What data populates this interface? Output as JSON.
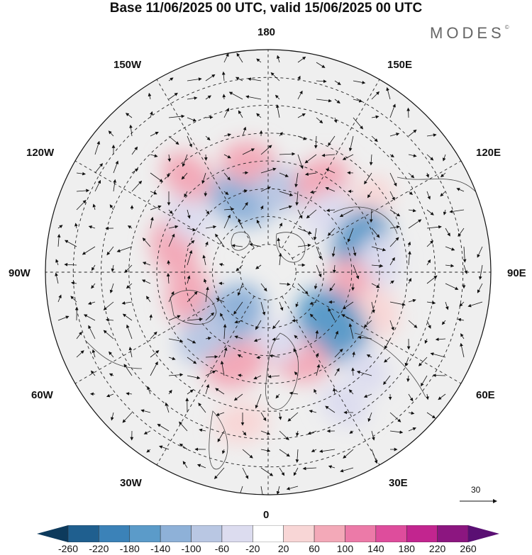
{
  "title": "Base 11/06/2025 00 UTC, valid 15/06/2025 00 UTC",
  "brand": "MODES",
  "brand_mark": "©",
  "longitude_labels": {
    "top": "180",
    "bottom": "0",
    "left": "90W",
    "right": "90E",
    "upper_left_1": "150W",
    "upper_left_2": "120W",
    "lower_left_1": "60W",
    "lower_left_2": "30W",
    "upper_right_1": "150E",
    "upper_right_2": "120E",
    "lower_right_1": "60E",
    "lower_right_2": "30E"
  },
  "vector_reference": {
    "value": "30"
  },
  "colorbar": {
    "labels": [
      "-260",
      "-220",
      "-180",
      "-140",
      "-100",
      "-60",
      "-20",
      "20",
      "60",
      "100",
      "140",
      "180",
      "220",
      "260"
    ],
    "colors": [
      "#0d3a5c",
      "#1f5f8f",
      "#3b82b8",
      "#5b9bc9",
      "#8eb1d8",
      "#b9c7e3",
      "#dcdcef",
      "#ffffff",
      "#f8d6d6",
      "#f3a9b8",
      "#ec7aa8",
      "#de4d9c",
      "#c2258f",
      "#8c1680",
      "#5a0f73"
    ]
  },
  "anomaly_cells": [
    {
      "lon": -160,
      "lat": 62,
      "value": -110
    },
    {
      "lon": -170,
      "lat": 50,
      "value": 60
    },
    {
      "lon": 170,
      "lat": 60,
      "value": -70
    },
    {
      "lon": 150,
      "lat": 52,
      "value": 70
    },
    {
      "lon": 135,
      "lat": 60,
      "value": -40
    },
    {
      "lon": 125,
      "lat": 45,
      "value": 40
    },
    {
      "lon": 105,
      "lat": 55,
      "value": -150
    },
    {
      "lon": 95,
      "lat": 50,
      "value": -60
    },
    {
      "lon": 80,
      "lat": 60,
      "value": 70
    },
    {
      "lon": 70,
      "lat": 48,
      "value": 50
    },
    {
      "lon": 50,
      "lat": 60,
      "value": -170
    },
    {
      "lon": 45,
      "lat": 40,
      "value": -30
    },
    {
      "lon": 20,
      "lat": 57,
      "value": 80
    },
    {
      "lon": 5,
      "lat": 65,
      "value": -60
    },
    {
      "lon": -20,
      "lat": 55,
      "value": 90
    },
    {
      "lon": -40,
      "lat": 70,
      "value": -120
    },
    {
      "lon": -45,
      "lat": 57,
      "value": -70
    },
    {
      "lon": -75,
      "lat": 60,
      "value": 60
    },
    {
      "lon": -105,
      "lat": 55,
      "value": 80
    },
    {
      "lon": -125,
      "lat": 55,
      "value": -50
    },
    {
      "lon": -140,
      "lat": 45,
      "value": 60
    },
    {
      "lon": -10,
      "lat": 35,
      "value": 50
    },
    {
      "lon": 30,
      "lat": 35,
      "value": -40
    }
  ]
}
